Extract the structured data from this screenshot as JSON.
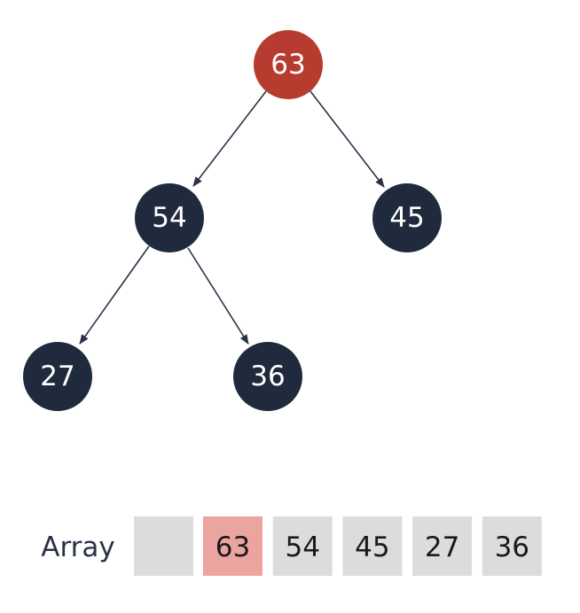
{
  "nodes": [
    {
      "label": 63,
      "color": "#b73c30"
    },
    {
      "label": 54,
      "color": "#1f2a3d"
    },
    {
      "label": 45,
      "color": "#1f2a3d"
    },
    {
      "label": 27,
      "color": "#1f2a3d"
    },
    {
      "label": 36,
      "color": "#1f2a3d"
    }
  ],
  "array": {
    "label": "Array",
    "cells": [
      {
        "value": 63,
        "color": "#eba4a0"
      },
      {
        "value": 54,
        "color": "#dcdcdc"
      },
      {
        "value": 45,
        "color": "#dcdcdc"
      },
      {
        "value": 27,
        "color": "#dcdcdc"
      },
      {
        "value": 36,
        "color": "#dcdcdc"
      }
    ]
  }
}
